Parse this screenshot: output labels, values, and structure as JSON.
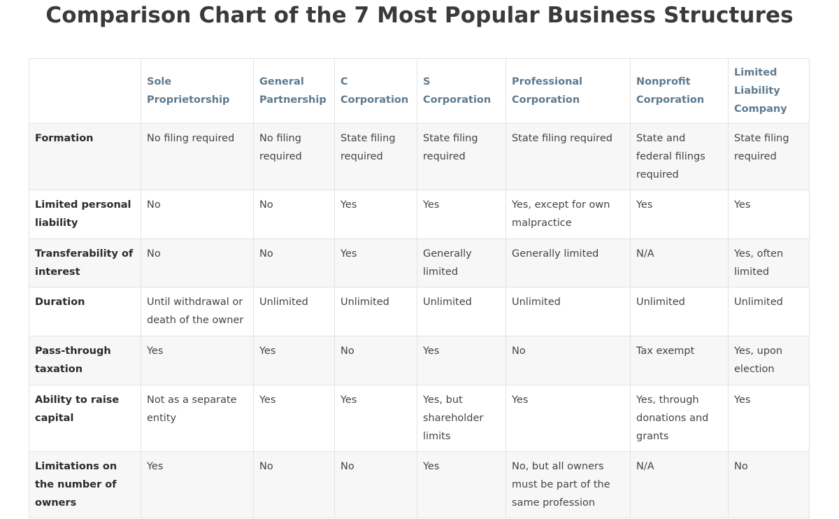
{
  "title": "Comparison Chart of the 7 Most Popular Business Structures",
  "table": {
    "corner": "",
    "columns": [
      "Sole Proprietorship",
      "General Partnership",
      "C Corporation",
      "S Corporation",
      "Professional Corporation",
      "Nonprofit Corporation",
      "Limited Liability Company"
    ],
    "rows": [
      {
        "label": "Formation",
        "cells": [
          "No filing required",
          "No filing required",
          "State filing required",
          "State filing required",
          "State filing required",
          "State and federal filings required",
          "State filing required"
        ]
      },
      {
        "label": "Limited personal liability",
        "cells": [
          "No",
          "No",
          "Yes",
          "Yes",
          "Yes, except for own malpractice",
          "Yes",
          "Yes"
        ]
      },
      {
        "label": "Transferability of interest",
        "cells": [
          "No",
          "No",
          "Yes",
          "Generally limited",
          "Generally limited",
          "N/A",
          "Yes, often limited"
        ]
      },
      {
        "label": "Duration",
        "cells": [
          "Until withdrawal or death of the owner",
          "Unlimited",
          "Unlimited",
          "Unlimited",
          "Unlimited",
          "Unlimited",
          "Unlimited"
        ]
      },
      {
        "label": "Pass-through taxation",
        "cells": [
          "Yes",
          "Yes",
          "No",
          "Yes",
          "No",
          "Tax exempt",
          "Yes, upon election"
        ]
      },
      {
        "label": "Ability to raise capital",
        "cells": [
          "Not as a separate entity",
          "Yes",
          "Yes",
          "Yes, but shareholder limits",
          "Yes",
          "Yes, through donations and grants",
          "Yes"
        ]
      },
      {
        "label": "Limitations on the number of owners",
        "cells": [
          "Yes",
          "No",
          "No",
          "Yes",
          "No, but all owners must be part of the same profession",
          "N/A",
          "No"
        ]
      }
    ]
  }
}
